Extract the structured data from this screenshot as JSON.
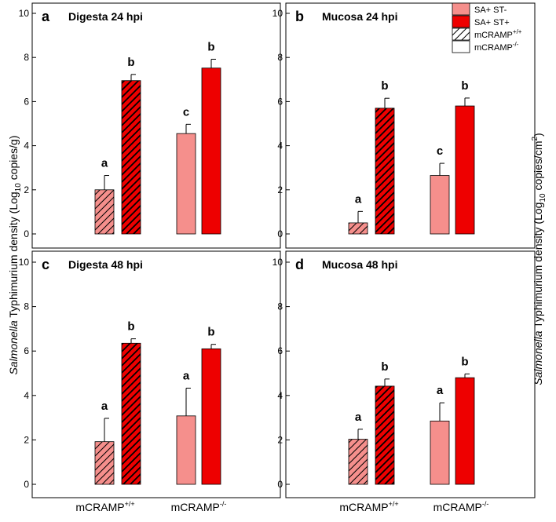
{
  "figure": {
    "y_label_left": {
      "italic": "Salmonella",
      "text": " Typhimurium density (Log",
      "sub": "10",
      "unit": " copies/g)"
    },
    "y_label_right": {
      "italic": "Salmonella",
      "text": " Typhimurium density (Log",
      "sub": "10",
      "unit": " copies/cm",
      "sup": "2",
      "close": ")"
    },
    "x_categories": [
      {
        "base": "mCRAMP",
        "sup": "+/+"
      },
      {
        "base": "mCRAMP",
        "sup": "-/-"
      }
    ],
    "legend": {
      "color_entries": [
        "SA+ ST-",
        "SA+ ST+"
      ],
      "pattern_entries": [
        {
          "base": "mCRAMP",
          "sup": "+/+"
        },
        {
          "base": "mCRAMP",
          "sup": "-/-"
        }
      ]
    }
  },
  "colors": {
    "st_neg": "#f58f8c",
    "st_pos": "#ee0000",
    "axis": "#000000"
  },
  "chart_data": [
    {
      "type": "bar",
      "letter": "a",
      "title": "Digesta 24 hpi",
      "ylim": [
        0,
        10
      ],
      "yticks": [
        "0",
        "2",
        "4",
        "6",
        "8",
        "10"
      ],
      "groups": [
        "mCRAMP+/+",
        "mCRAMP-/-"
      ],
      "series": [
        {
          "name": "SA+ ST-",
          "values": [
            2.0,
            4.55
          ],
          "errors": [
            0.65,
            0.42
          ],
          "sig": [
            "a",
            "c"
          ]
        },
        {
          "name": "SA+ ST+",
          "values": [
            6.95,
            7.52
          ],
          "errors": [
            0.28,
            0.4
          ],
          "sig": [
            "b",
            "b"
          ]
        }
      ]
    },
    {
      "type": "bar",
      "letter": "b",
      "title": "Mucosa 24 hpi",
      "ylim": [
        0,
        10
      ],
      "yticks": [
        "0",
        "2",
        "4",
        "6",
        "8",
        "10"
      ],
      "groups": [
        "mCRAMP+/+",
        "mCRAMP-/-"
      ],
      "series": [
        {
          "name": "SA+ ST-",
          "values": [
            0.5,
            2.65
          ],
          "errors": [
            0.52,
            0.55
          ],
          "sig": [
            "a",
            "c"
          ]
        },
        {
          "name": "SA+ ST+",
          "values": [
            5.7,
            5.8
          ],
          "errors": [
            0.45,
            0.36
          ],
          "sig": [
            "b",
            "b"
          ]
        }
      ]
    },
    {
      "type": "bar",
      "letter": "c",
      "title": "Digesta 48 hpi",
      "ylim": [
        0,
        10
      ],
      "yticks": [
        "0",
        "2",
        "4",
        "6",
        "8",
        "10"
      ],
      "groups": [
        "mCRAMP+/+",
        "mCRAMP-/-"
      ],
      "series": [
        {
          "name": "SA+ ST-",
          "values": [
            1.92,
            3.08
          ],
          "errors": [
            1.05,
            1.25
          ],
          "sig": [
            "a",
            "a"
          ]
        },
        {
          "name": "SA+ ST+",
          "values": [
            6.35,
            6.1
          ],
          "errors": [
            0.2,
            0.2
          ],
          "sig": [
            "b",
            "b"
          ]
        }
      ]
    },
    {
      "type": "bar",
      "letter": "d",
      "title": "Mucosa 48 hpi",
      "ylim": [
        0,
        10
      ],
      "yticks": [
        "0",
        "2",
        "4",
        "6",
        "8",
        "10"
      ],
      "groups": [
        "mCRAMP+/+",
        "mCRAMP-/-"
      ],
      "series": [
        {
          "name": "SA+ ST-",
          "values": [
            2.03,
            2.85
          ],
          "errors": [
            0.45,
            0.82
          ],
          "sig": [
            "a",
            "a"
          ]
        },
        {
          "name": "SA+ ST+",
          "values": [
            4.42,
            4.8
          ],
          "errors": [
            0.32,
            0.17
          ],
          "sig": [
            "b",
            "b"
          ]
        }
      ]
    }
  ]
}
